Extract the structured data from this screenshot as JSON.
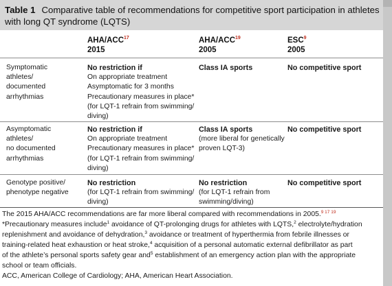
{
  "table": {
    "label": "Table 1",
    "caption": "Comparative table of recommendations for competitive sport participation in athletes with long QT syndrome (LQTS)"
  },
  "columns": [
    {
      "org": "AHA/ACC",
      "ref": "17",
      "year": "2015"
    },
    {
      "org": "AHA/ACC",
      "ref": "19",
      "year": "2005"
    },
    {
      "org": "ESC",
      "ref": "9",
      "year": "2005"
    }
  ],
  "rows": [
    {
      "label": [
        "Symptomatic",
        "athletes/",
        "documented",
        "arrhythmias"
      ],
      "aha2015": {
        "head": "No restriction if",
        "lines": [
          "On appropriate treatment",
          "Asymptomatic for 3 months",
          "Precautionary measures in place*",
          "(for LQT-1 refrain from swimming/",
          "diving)"
        ]
      },
      "aha2005": {
        "head": "Class IA sports",
        "lines": []
      },
      "esc2005": {
        "head": "No competitive sport",
        "lines": []
      }
    },
    {
      "label": [
        "Asymptomatic",
        "athletes/",
        "no documented",
        "arrhythmias"
      ],
      "aha2015": {
        "head": "No restriction if",
        "lines": [
          "On appropriate treatment",
          "Precautionary measures in place*",
          "(for LQT-1 refrain from swimming/",
          "diving)"
        ]
      },
      "aha2005": {
        "head": "Class IA sports",
        "lines": [
          "(more liberal for genetically",
          "proven LQT-3)"
        ]
      },
      "esc2005": {
        "head": "No competitive sport",
        "lines": []
      }
    },
    {
      "label": [
        "Genotype positive/",
        "phenotype negative"
      ],
      "aha2015": {
        "head": "No restriction",
        "lines": [
          "(for LQT-1 refrain from swimming/",
          "diving)"
        ]
      },
      "aha2005": {
        "head": "No restriction",
        "lines": [
          "(for LQT-1 refrain from",
          "swimming/diving)"
        ]
      },
      "esc2005": {
        "head": "No competitive sport",
        "lines": []
      }
    }
  ],
  "footnotes": {
    "line1": "The 2015 AHA/ACC recommendations are far more liberal compared with recommendations in 2005.",
    "line1_ref": "9 17 19",
    "p1": "*Precautionary measures include",
    "s1": "1",
    "p2": " avoidance of QT-prolonging drugs for athletes with LQTS,",
    "s2": "2",
    "p3": " electrolyte/hydration",
    "p4": "replenishment and avoidance of dehydration,",
    "s3": "3",
    "p5": " avoidance or treatment of hyperthermia from febrile illnesses or",
    "p6": "training-related heat exhaustion or heat stroke,",
    "s4": "4",
    "p7": " acquisition of a personal automatic external defibrillator as part",
    "p8": "of the athlete’s personal sports safety gear and",
    "s5": "5",
    "p9": " establishment of an emergency action plan with the appropriate",
    "p10": "school or team officials.",
    "abbrev": "ACC, American College of Cardiology; AHA, American Heart Association."
  }
}
